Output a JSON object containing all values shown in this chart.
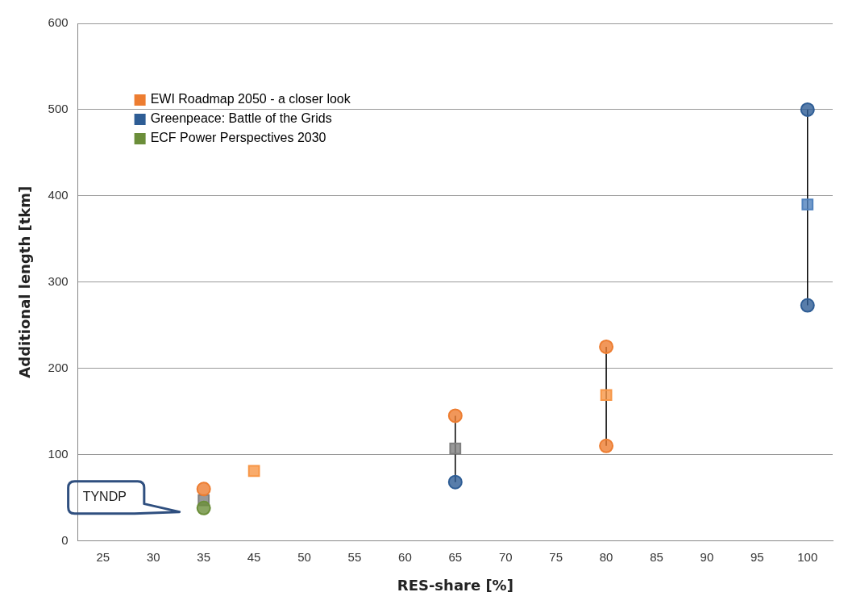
{
  "chart_data": {
    "type": "scatter",
    "xlabel": "RES-share [%]",
    "ylabel": "Additional length [tkm]",
    "categories": [
      "25",
      "30",
      "35",
      "45",
      "50",
      "55",
      "60",
      "65",
      "70",
      "75",
      "80",
      "85",
      "90",
      "95",
      "100"
    ],
    "series": [
      {
        "name": "EWI Roadmap 2050 - a closer look",
        "color": "#ed7d31",
        "x": [
          "35",
          "65",
          "80",
          "80"
        ],
        "values": [
          60,
          145,
          225,
          110
        ]
      },
      {
        "name": "Greenpeace: Battle of the Grids",
        "color": "#2e5d95",
        "x": [
          "65",
          "100",
          "100"
        ],
        "values": [
          68,
          500,
          273
        ]
      },
      {
        "name": "ECF Power Perspectives 2030",
        "color": "#6b8e3a",
        "x": [
          "35"
        ],
        "values": [
          38
        ]
      },
      {
        "colors": [
          "#7f7f7f",
          "#f79646",
          "#7f7f7f",
          "#f79646",
          "#4f81bd"
        ],
        "marker": "square",
        "x": [
          "35",
          "45",
          "65",
          "80",
          "100"
        ],
        "values": [
          47,
          81,
          107,
          169,
          390
        ]
      },
      {
        "type": "line",
        "color": "#000000",
        "marker": "none",
        "x": [
          "65",
          "65"
        ],
        "values": [
          68,
          145
        ]
      },
      {
        "type": "line",
        "color": "#000000",
        "marker": "none",
        "x": [
          "80",
          "80"
        ],
        "values": [
          110,
          225
        ]
      },
      {
        "type": "line",
        "color": "#000000",
        "marker": "none",
        "x": [
          "100",
          "100"
        ],
        "values": [
          273,
          500
        ]
      }
    ],
    "marker": "circle",
    "ylim": [
      0,
      600
    ],
    "yticks": [
      0,
      100,
      200,
      300,
      400,
      500,
      600
    ],
    "grid": "y",
    "legend": "top left",
    "annotations": [
      "TYNDP"
    ]
  }
}
